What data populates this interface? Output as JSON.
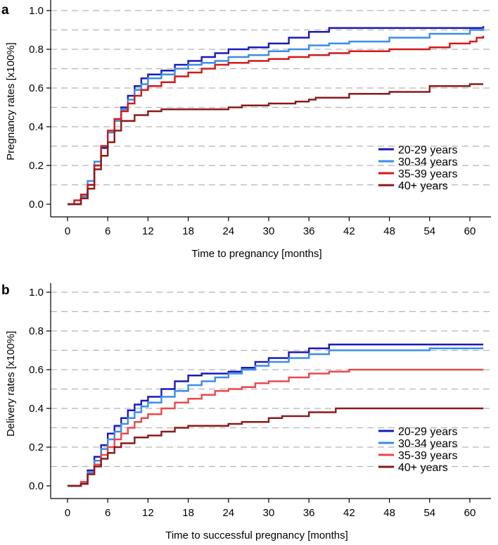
{
  "colors": {
    "20-29 years": "#1a1ab8",
    "30-34 years": "#3a8ee6",
    "35-39 years_a": "#d11a1a",
    "35-39 years_b": "#e84a4a",
    "40+ years": "#8b1a1a",
    "grid": "#b3b3b3",
    "axis": "#000000"
  },
  "chart_data": [
    {
      "type": "line",
      "step": true,
      "panel": "a",
      "title": "",
      "xlabel": "Time to pregnancy [months]",
      "ylabel": "Pregnancy rates [x100%]",
      "xlim": [
        -2,
        62
      ],
      "ylim": [
        0,
        1.0
      ],
      "xticks": [
        0,
        6,
        12,
        18,
        24,
        30,
        36,
        42,
        48,
        54,
        60
      ],
      "yticks": [
        "0.0",
        "0.2",
        "0.4",
        "0.6",
        "0.8",
        "1.0"
      ],
      "grid": "horizontal dashed every 0.1",
      "legend_position": "lower-right",
      "series": [
        {
          "name": "20-29 years",
          "x": [
            0,
            1,
            2,
            3,
            4,
            5,
            6,
            7,
            8,
            9,
            10,
            11,
            12,
            14,
            16,
            18,
            20,
            22,
            24,
            27,
            30,
            33,
            36,
            39,
            42,
            48,
            54,
            60,
            62
          ],
          "y": [
            0,
            0.0,
            0.03,
            0.1,
            0.2,
            0.29,
            0.37,
            0.43,
            0.5,
            0.56,
            0.61,
            0.65,
            0.67,
            0.69,
            0.72,
            0.74,
            0.76,
            0.78,
            0.8,
            0.81,
            0.83,
            0.86,
            0.89,
            0.91,
            0.91,
            0.91,
            0.91,
            0.91,
            0.92
          ]
        },
        {
          "name": "30-34 years",
          "x": [
            0,
            1,
            2,
            3,
            4,
            5,
            6,
            7,
            8,
            9,
            10,
            11,
            12,
            14,
            16,
            18,
            20,
            22,
            24,
            27,
            30,
            33,
            36,
            39,
            42,
            48,
            54,
            60,
            62
          ],
          "y": [
            0,
            0.0,
            0.04,
            0.12,
            0.22,
            0.3,
            0.37,
            0.43,
            0.49,
            0.54,
            0.59,
            0.62,
            0.65,
            0.67,
            0.7,
            0.72,
            0.73,
            0.74,
            0.76,
            0.77,
            0.79,
            0.8,
            0.82,
            0.83,
            0.84,
            0.86,
            0.88,
            0.9,
            0.91
          ]
        },
        {
          "name": "35-39 years",
          "x": [
            0,
            1,
            2,
            3,
            4,
            5,
            6,
            7,
            8,
            9,
            10,
            11,
            12,
            14,
            16,
            18,
            20,
            22,
            24,
            27,
            30,
            33,
            36,
            39,
            42,
            48,
            54,
            57,
            60,
            61,
            62
          ],
          "y": [
            0,
            0.02,
            0.05,
            0.1,
            0.2,
            0.3,
            0.38,
            0.44,
            0.48,
            0.52,
            0.56,
            0.59,
            0.61,
            0.63,
            0.66,
            0.68,
            0.7,
            0.72,
            0.73,
            0.74,
            0.75,
            0.76,
            0.77,
            0.78,
            0.79,
            0.8,
            0.81,
            0.83,
            0.84,
            0.86,
            0.87
          ]
        },
        {
          "name": "40+ years",
          "x": [
            0,
            2,
            3,
            4,
            5,
            6,
            7,
            8,
            10,
            12,
            14,
            18,
            24,
            26,
            28,
            30,
            32,
            34,
            36,
            37,
            42,
            48,
            54,
            60,
            62
          ],
          "y": [
            0,
            0.03,
            0.08,
            0.18,
            0.25,
            0.32,
            0.38,
            0.43,
            0.46,
            0.48,
            0.49,
            0.49,
            0.5,
            0.51,
            0.51,
            0.52,
            0.52,
            0.53,
            0.54,
            0.55,
            0.57,
            0.58,
            0.61,
            0.62,
            0.62
          ]
        }
      ]
    },
    {
      "type": "line",
      "step": true,
      "panel": "b",
      "title": "",
      "xlabel": "Time to successful pregnancy [months]",
      "ylabel": "Delivery rates [x100%]",
      "xlim": [
        -2,
        62
      ],
      "ylim": [
        0,
        1.0
      ],
      "xticks": [
        0,
        6,
        12,
        18,
        24,
        30,
        36,
        42,
        48,
        54,
        60
      ],
      "yticks": [
        "0.0",
        "0.2",
        "0.4",
        "0.6",
        "0.8",
        "1.0"
      ],
      "grid": "horizontal dashed every 0.1",
      "legend_position": "lower-right",
      "series": [
        {
          "name": "20-29 years",
          "x": [
            0,
            2,
            3,
            4,
            5,
            6,
            7,
            8,
            9,
            10,
            11,
            12,
            14,
            16,
            18,
            20,
            22,
            24,
            26,
            28,
            30,
            33,
            36,
            39,
            42,
            48,
            54,
            60,
            62
          ],
          "y": [
            0,
            0.02,
            0.08,
            0.15,
            0.21,
            0.27,
            0.31,
            0.35,
            0.39,
            0.42,
            0.44,
            0.46,
            0.5,
            0.54,
            0.57,
            0.58,
            0.58,
            0.59,
            0.61,
            0.64,
            0.66,
            0.69,
            0.71,
            0.73,
            0.73,
            0.73,
            0.73,
            0.73,
            0.73
          ]
        },
        {
          "name": "30-34 years",
          "x": [
            0,
            2,
            3,
            4,
            5,
            6,
            7,
            8,
            9,
            10,
            11,
            12,
            14,
            16,
            18,
            20,
            22,
            24,
            26,
            28,
            30,
            33,
            36,
            39,
            42,
            48,
            54,
            60,
            62
          ],
          "y": [
            0,
            0.01,
            0.07,
            0.13,
            0.19,
            0.24,
            0.28,
            0.32,
            0.35,
            0.38,
            0.41,
            0.43,
            0.46,
            0.49,
            0.52,
            0.54,
            0.56,
            0.58,
            0.6,
            0.62,
            0.64,
            0.66,
            0.68,
            0.7,
            0.7,
            0.7,
            0.71,
            0.71,
            0.71
          ]
        },
        {
          "name": "35-39 years",
          "x": [
            0,
            2,
            3,
            4,
            5,
            6,
            7,
            8,
            9,
            10,
            11,
            12,
            14,
            16,
            18,
            20,
            22,
            24,
            26,
            28,
            30,
            33,
            36,
            39,
            42,
            48,
            54,
            60,
            62
          ],
          "y": [
            0,
            0.02,
            0.06,
            0.11,
            0.16,
            0.2,
            0.24,
            0.27,
            0.3,
            0.33,
            0.35,
            0.37,
            0.4,
            0.43,
            0.45,
            0.47,
            0.49,
            0.5,
            0.51,
            0.53,
            0.54,
            0.56,
            0.58,
            0.59,
            0.6,
            0.6,
            0.6,
            0.6,
            0.6
          ]
        },
        {
          "name": "40+ years",
          "x": [
            0,
            2,
            3,
            4,
            5,
            6,
            7,
            8,
            10,
            12,
            14,
            16,
            18,
            20,
            24,
            26,
            30,
            32,
            36,
            40,
            42,
            48,
            54,
            60,
            62
          ],
          "y": [
            0,
            0.01,
            0.06,
            0.1,
            0.14,
            0.17,
            0.2,
            0.22,
            0.25,
            0.26,
            0.28,
            0.3,
            0.31,
            0.31,
            0.32,
            0.33,
            0.35,
            0.36,
            0.38,
            0.4,
            0.4,
            0.4,
            0.4,
            0.4,
            0.4
          ]
        }
      ]
    }
  ]
}
